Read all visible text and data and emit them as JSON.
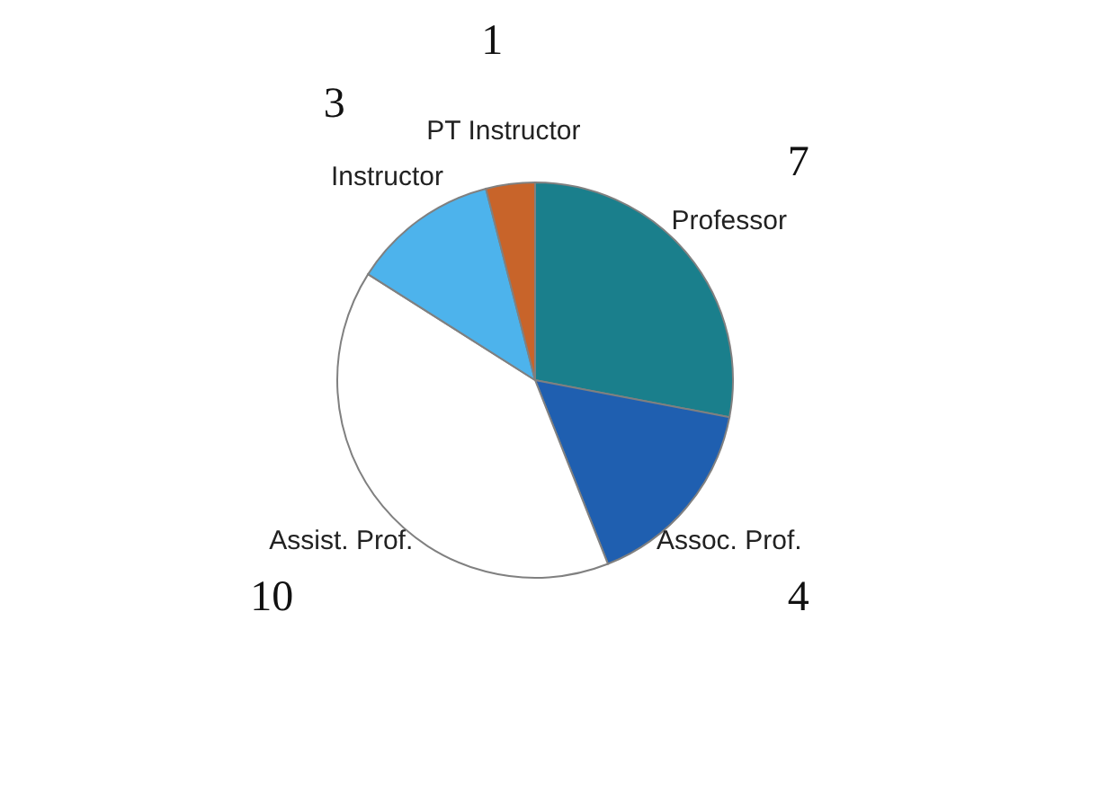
{
  "chart_data": {
    "type": "pie",
    "categories": [
      "Professor",
      "Assoc. Prof.",
      "Assist. Prof.",
      "Instructor",
      "PT Instructor"
    ],
    "values": [
      7,
      4,
      10,
      3,
      1
    ],
    "colors": [
      "#1a7f8c",
      "#1f5fb0",
      "#ffffff",
      "#4db3ec",
      "#c8642a"
    ],
    "data_labels": true,
    "legend": false
  }
}
